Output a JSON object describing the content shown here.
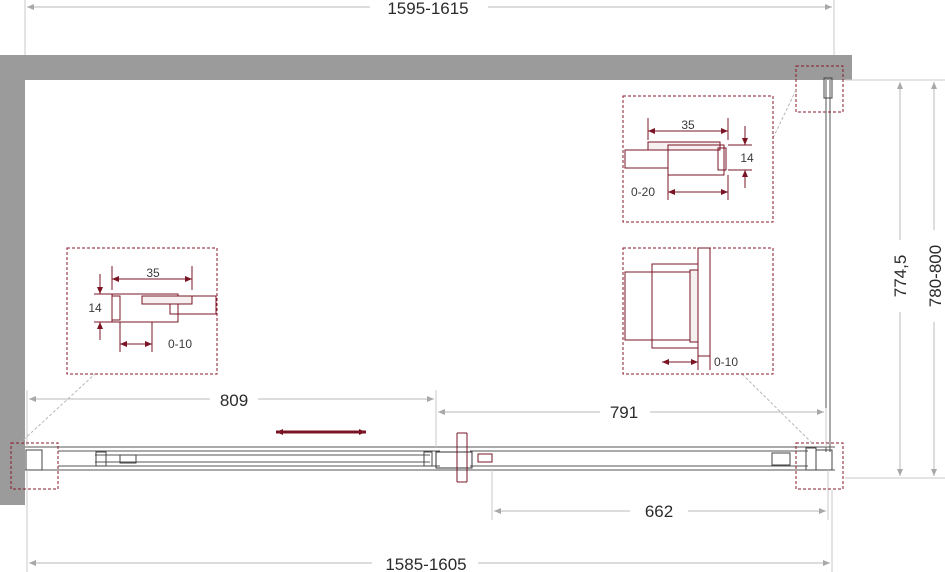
{
  "dimensions": {
    "top_width": "1595-1615",
    "bottom_width": "1585-1605",
    "left_door": "809",
    "right_door": "791",
    "fixed_panel": "662",
    "side_inner": "774,5",
    "side_outer": "780-800"
  },
  "details": {
    "top_right": {
      "width": "35",
      "height": "14",
      "adjust": "0-20"
    },
    "left": {
      "width": "35",
      "height": "14",
      "adjust": "0-10"
    },
    "right": {
      "adjust": "0-10"
    }
  },
  "colors": {
    "wall": "#9b9b9b",
    "accent": "#7a1424",
    "dimension_line": "#b8b8b8"
  },
  "icons": [
    "slide-direction-arrow-icon"
  ]
}
